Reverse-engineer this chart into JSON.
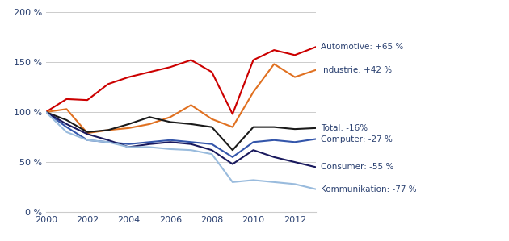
{
  "years": [
    2000,
    2001,
    2002,
    2003,
    2004,
    2005,
    2006,
    2007,
    2008,
    2009,
    2010,
    2011,
    2012,
    2013
  ],
  "series": {
    "Automotive": {
      "values": [
        100,
        113,
        112,
        128,
        135,
        140,
        145,
        152,
        140,
        98,
        152,
        162,
        157,
        165
      ],
      "color": "#cc0000",
      "label": "Automotive: +65 %",
      "linewidth": 1.5
    },
    "Industrie": {
      "values": [
        100,
        103,
        79,
        82,
        84,
        88,
        95,
        107,
        93,
        85,
        120,
        148,
        135,
        142
      ],
      "color": "#e07020",
      "label": "Industrie: +42 %",
      "linewidth": 1.5
    },
    "Total": {
      "values": [
        100,
        92,
        80,
        82,
        88,
        95,
        90,
        88,
        85,
        62,
        85,
        85,
        83,
        84
      ],
      "color": "#1a1a1a",
      "label": "Total: -16%",
      "linewidth": 1.5
    },
    "Computer": {
      "values": [
        100,
        85,
        72,
        70,
        68,
        70,
        72,
        70,
        68,
        55,
        70,
        72,
        70,
        73
      ],
      "color": "#3355aa",
      "label": "Computer: -27 %",
      "linewidth": 1.5
    },
    "Consumer": {
      "values": [
        100,
        88,
        78,
        72,
        65,
        68,
        70,
        68,
        62,
        48,
        62,
        55,
        50,
        45
      ],
      "color": "#1a1a5e",
      "label": "Consumer: -55 %",
      "linewidth": 1.5
    },
    "Kommunikation": {
      "values": [
        100,
        80,
        72,
        70,
        65,
        65,
        63,
        62,
        58,
        30,
        32,
        30,
        28,
        23
      ],
      "color": "#99bbdd",
      "label": "Kommunikation: -77 %",
      "linewidth": 1.5
    }
  },
  "ylim": [
    0,
    200
  ],
  "yticks": [
    0,
    50,
    100,
    150,
    200
  ],
  "ytick_labels": [
    "0 %",
    "50 %",
    "100 %",
    "150 %",
    "200 %"
  ],
  "xticks": [
    2000,
    2002,
    2004,
    2006,
    2008,
    2010,
    2012
  ],
  "label_order": [
    "Automotive",
    "Industrie",
    "Total",
    "Computer",
    "Consumer",
    "Kommunikation"
  ],
  "label_y_positions": [
    165,
    142,
    84,
    73,
    45,
    23
  ],
  "background_color": "#ffffff",
  "grid_color": "#cccccc",
  "text_color": "#2a4070",
  "label_fontsize": 7.5,
  "tick_fontsize": 8,
  "xlim_max": 2013
}
